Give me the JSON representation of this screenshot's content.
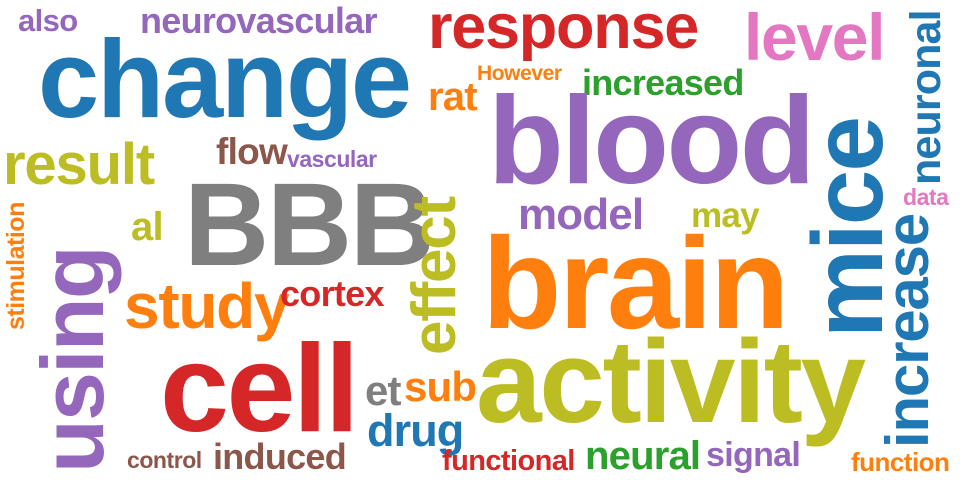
{
  "word_cloud": {
    "colors": {
      "blue": "#1f77b4",
      "orange": "#ff7f0e",
      "green": "#2ca02c",
      "red": "#d62728",
      "purple": "#9467bd",
      "brown": "#8c564b",
      "pink": "#e377c2",
      "gray": "#7f7f7f",
      "olive": "#bcbd22"
    },
    "words": [
      {
        "id": "also",
        "text": "also",
        "color": "purple"
      },
      {
        "id": "neurovascular",
        "text": "neurovascular",
        "color": "purple"
      },
      {
        "id": "response",
        "text": "response",
        "color": "red"
      },
      {
        "id": "level",
        "text": "level",
        "color": "pink"
      },
      {
        "id": "neuronal",
        "text": "neuronal",
        "color": "blue"
      },
      {
        "id": "change",
        "text": "change",
        "color": "blue"
      },
      {
        "id": "however",
        "text": "However",
        "color": "orange"
      },
      {
        "id": "increased",
        "text": "increased",
        "color": "green"
      },
      {
        "id": "rat",
        "text": "rat",
        "color": "orange"
      },
      {
        "id": "blood",
        "text": "blood",
        "color": "purple"
      },
      {
        "id": "mice",
        "text": "mice",
        "color": "blue"
      },
      {
        "id": "result",
        "text": "result",
        "color": "olive"
      },
      {
        "id": "flow",
        "text": "flow",
        "color": "brown"
      },
      {
        "id": "vascular",
        "text": "vascular",
        "color": "purple"
      },
      {
        "id": "data",
        "text": "data",
        "color": "pink"
      },
      {
        "id": "bbb",
        "text": "BBB",
        "color": "gray"
      },
      {
        "id": "effect",
        "text": "effect",
        "color": "olive"
      },
      {
        "id": "model",
        "text": "model",
        "color": "purple"
      },
      {
        "id": "may",
        "text": "may",
        "color": "olive"
      },
      {
        "id": "using",
        "text": "using",
        "color": "purple"
      },
      {
        "id": "al",
        "text": "al",
        "color": "olive"
      },
      {
        "id": "stimulation",
        "text": "stimulation",
        "color": "orange"
      },
      {
        "id": "brain",
        "text": "brain",
        "color": "orange"
      },
      {
        "id": "increase",
        "text": "increase",
        "color": "blue"
      },
      {
        "id": "study",
        "text": "study",
        "color": "orange"
      },
      {
        "id": "cortex",
        "text": "cortex",
        "color": "red"
      },
      {
        "id": "cell",
        "text": "cell",
        "color": "red"
      },
      {
        "id": "activity",
        "text": "activity",
        "color": "olive"
      },
      {
        "id": "et",
        "text": "et",
        "color": "gray"
      },
      {
        "id": "sub",
        "text": "sub",
        "color": "orange"
      },
      {
        "id": "drug",
        "text": "drug",
        "color": "blue"
      },
      {
        "id": "control",
        "text": "control",
        "color": "brown"
      },
      {
        "id": "induced",
        "text": "induced",
        "color": "brown"
      },
      {
        "id": "functional",
        "text": "functional",
        "color": "red"
      },
      {
        "id": "neural",
        "text": "neural",
        "color": "green"
      },
      {
        "id": "signal",
        "text": "signal",
        "color": "purple"
      },
      {
        "id": "function",
        "text": "function",
        "color": "orange"
      }
    ]
  }
}
